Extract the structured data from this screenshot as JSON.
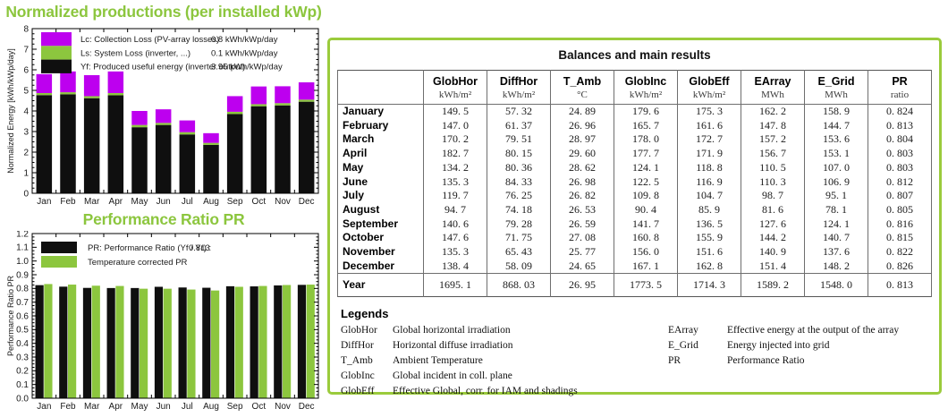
{
  "colors": {
    "accent_green": "#8cc63e",
    "bar_black": "#0f0f0f",
    "bar_green": "#8cc63e",
    "bar_magenta": "#bd00ef",
    "panel_border": "#9bcb3c"
  },
  "chart_data": [
    {
      "id": "normalized",
      "type": "bar",
      "subtype": "stacked",
      "title": "Normalized productions (per installed kWp)",
      "ylabel": "Normalized Energy [kWh/kWp/day]",
      "ylim": [
        0,
        8
      ],
      "ytick_step": 1,
      "grid": false,
      "legend_position": "top-left-inside",
      "categories": [
        "Jan",
        "Feb",
        "Mar",
        "Apr",
        "May",
        "Jun",
        "Jul",
        "Aug",
        "Sep",
        "Oct",
        "Nov",
        "Dec"
      ],
      "series": [
        {
          "name": "Yf: Produced useful energy  (inverter output)",
          "legend_value": "3.95 kWh/kWp/day",
          "color_key": "bar_black",
          "values": [
            4.77,
            4.81,
            4.62,
            4.76,
            3.21,
            3.32,
            2.86,
            2.35,
            3.85,
            4.23,
            4.27,
            4.45
          ]
        },
        {
          "name": "Ls: System Loss  (inverter, ...)",
          "legend_value": "0.1 kWh/kWp/day",
          "color_key": "bar_green",
          "values": [
            0.1,
            0.1,
            0.1,
            0.11,
            0.11,
            0.1,
            0.11,
            0.1,
            0.11,
            0.1,
            0.11,
            0.1
          ]
        },
        {
          "name": "Lc: Collection Loss (PV-array losses)",
          "legend_value": "0.8 kWh/kWp/day",
          "color_key": "bar_magenta",
          "values": [
            0.92,
            1.01,
            1.02,
            1.05,
            0.68,
            0.66,
            0.57,
            0.47,
            0.76,
            0.86,
            0.82,
            0.84
          ]
        }
      ],
      "legend_display_order": [
        2,
        1,
        0
      ]
    },
    {
      "id": "pr",
      "type": "bar",
      "subtype": "grouped",
      "title": "Performance Ratio PR",
      "ylabel": "Performance Ratio PR",
      "ylim": [
        0,
        1.2
      ],
      "ytick_step": 0.1,
      "grid": false,
      "legend_position": "top-left-inside",
      "categories": [
        "Jan",
        "Feb",
        "Mar",
        "Apr",
        "May",
        "Jun",
        "Jul",
        "Aug",
        "Sep",
        "Oct",
        "Nov",
        "Dec"
      ],
      "series": [
        {
          "name": "PR: Performance Ratio (Yf / Yr) :",
          "legend_value": "0.813",
          "color_key": "bar_black",
          "values": [
            0.824,
            0.813,
            0.804,
            0.803,
            0.803,
            0.812,
            0.807,
            0.805,
            0.816,
            0.815,
            0.822,
            0.826
          ]
        },
        {
          "name": "Temperature corrected PR",
          "legend_value": "",
          "color_key": "bar_green",
          "values": [
            0.832,
            0.828,
            0.82,
            0.818,
            0.798,
            0.798,
            0.792,
            0.785,
            0.812,
            0.818,
            0.825,
            0.828
          ]
        }
      ],
      "legend_display_order": [
        0,
        1
      ]
    }
  ],
  "table": {
    "title": "Balances and main results",
    "columns": [
      "GlobHor",
      "DiffHor",
      "T_Amb",
      "GlobInc",
      "GlobEff",
      "EArray",
      "E_Grid",
      "PR"
    ],
    "units": [
      "kWh/m²",
      "kWh/m²",
      "°C",
      "kWh/m²",
      "kWh/m²",
      "MWh",
      "MWh",
      "ratio"
    ],
    "rows": [
      {
        "label": "January",
        "values": [
          "149. 5",
          "57. 32",
          "24. 89",
          "179. 6",
          "175. 3",
          "162. 2",
          "158. 9",
          "0. 824"
        ]
      },
      {
        "label": "February",
        "values": [
          "147. 0",
          "61. 37",
          "26. 96",
          "165. 7",
          "161. 6",
          "147. 8",
          "144. 7",
          "0. 813"
        ]
      },
      {
        "label": "March",
        "values": [
          "170. 2",
          "79. 51",
          "28. 97",
          "178. 0",
          "172. 7",
          "157. 2",
          "153. 6",
          "0. 804"
        ]
      },
      {
        "label": "April",
        "values": [
          "182. 7",
          "80. 15",
          "29. 60",
          "177. 7",
          "171. 9",
          "156. 7",
          "153. 1",
          "0. 803"
        ]
      },
      {
        "label": "May",
        "values": [
          "134. 2",
          "80. 36",
          "28. 62",
          "124. 1",
          "118. 8",
          "110. 5",
          "107. 0",
          "0. 803"
        ]
      },
      {
        "label": "June",
        "values": [
          "135. 3",
          "84. 33",
          "26. 98",
          "122. 5",
          "116. 9",
          "110. 3",
          "106. 9",
          "0. 812"
        ]
      },
      {
        "label": "July",
        "values": [
          "119. 7",
          "76. 25",
          "26. 82",
          "109. 8",
          "104. 7",
          "98. 7",
          "95. 1",
          "0. 807"
        ]
      },
      {
        "label": "August",
        "values": [
          "94. 7",
          "74. 18",
          "26. 53",
          "90. 4",
          "85. 9",
          "81. 6",
          "78. 1",
          "0. 805"
        ]
      },
      {
        "label": "September",
        "values": [
          "140. 6",
          "79. 28",
          "26. 59",
          "141. 7",
          "136. 5",
          "127. 6",
          "124. 1",
          "0. 816"
        ]
      },
      {
        "label": "October",
        "values": [
          "147. 6",
          "71. 75",
          "27. 08",
          "160. 8",
          "155. 9",
          "144. 2",
          "140. 7",
          "0. 815"
        ]
      },
      {
        "label": "November",
        "values": [
          "135. 3",
          "65. 43",
          "25. 77",
          "156. 0",
          "151. 6",
          "140. 9",
          "137. 6",
          "0. 822"
        ]
      },
      {
        "label": "December",
        "values": [
          "138. 4",
          "58. 09",
          "24. 65",
          "167. 1",
          "162. 8",
          "151. 4",
          "148. 2",
          "0. 826"
        ]
      }
    ],
    "total": {
      "label": "Year",
      "values": [
        "1695. 1",
        "868. 03",
        "26. 95",
        "1773. 5",
        "1714. 3",
        "1589. 2",
        "1548. 0",
        "0. 813"
      ]
    }
  },
  "legends": {
    "title": "Legends",
    "left": [
      {
        "term": "GlobHor",
        "desc": "Global horizontal irradiation"
      },
      {
        "term": "DiffHor",
        "desc": "Horizontal diffuse irradiation"
      },
      {
        "term": "T_Amb",
        "desc": "Ambient Temperature"
      },
      {
        "term": "GlobInc",
        "desc": "Global incident in coll. plane"
      },
      {
        "term": "GlobEff",
        "desc": "Effective Global, corr. for IAM and shadings"
      }
    ],
    "right": [
      {
        "term": "EArray",
        "desc": "Effective energy at the output of the array"
      },
      {
        "term": "E_Grid",
        "desc": "Energy injected into grid"
      },
      {
        "term": "PR",
        "desc": "Performance Ratio"
      }
    ]
  }
}
